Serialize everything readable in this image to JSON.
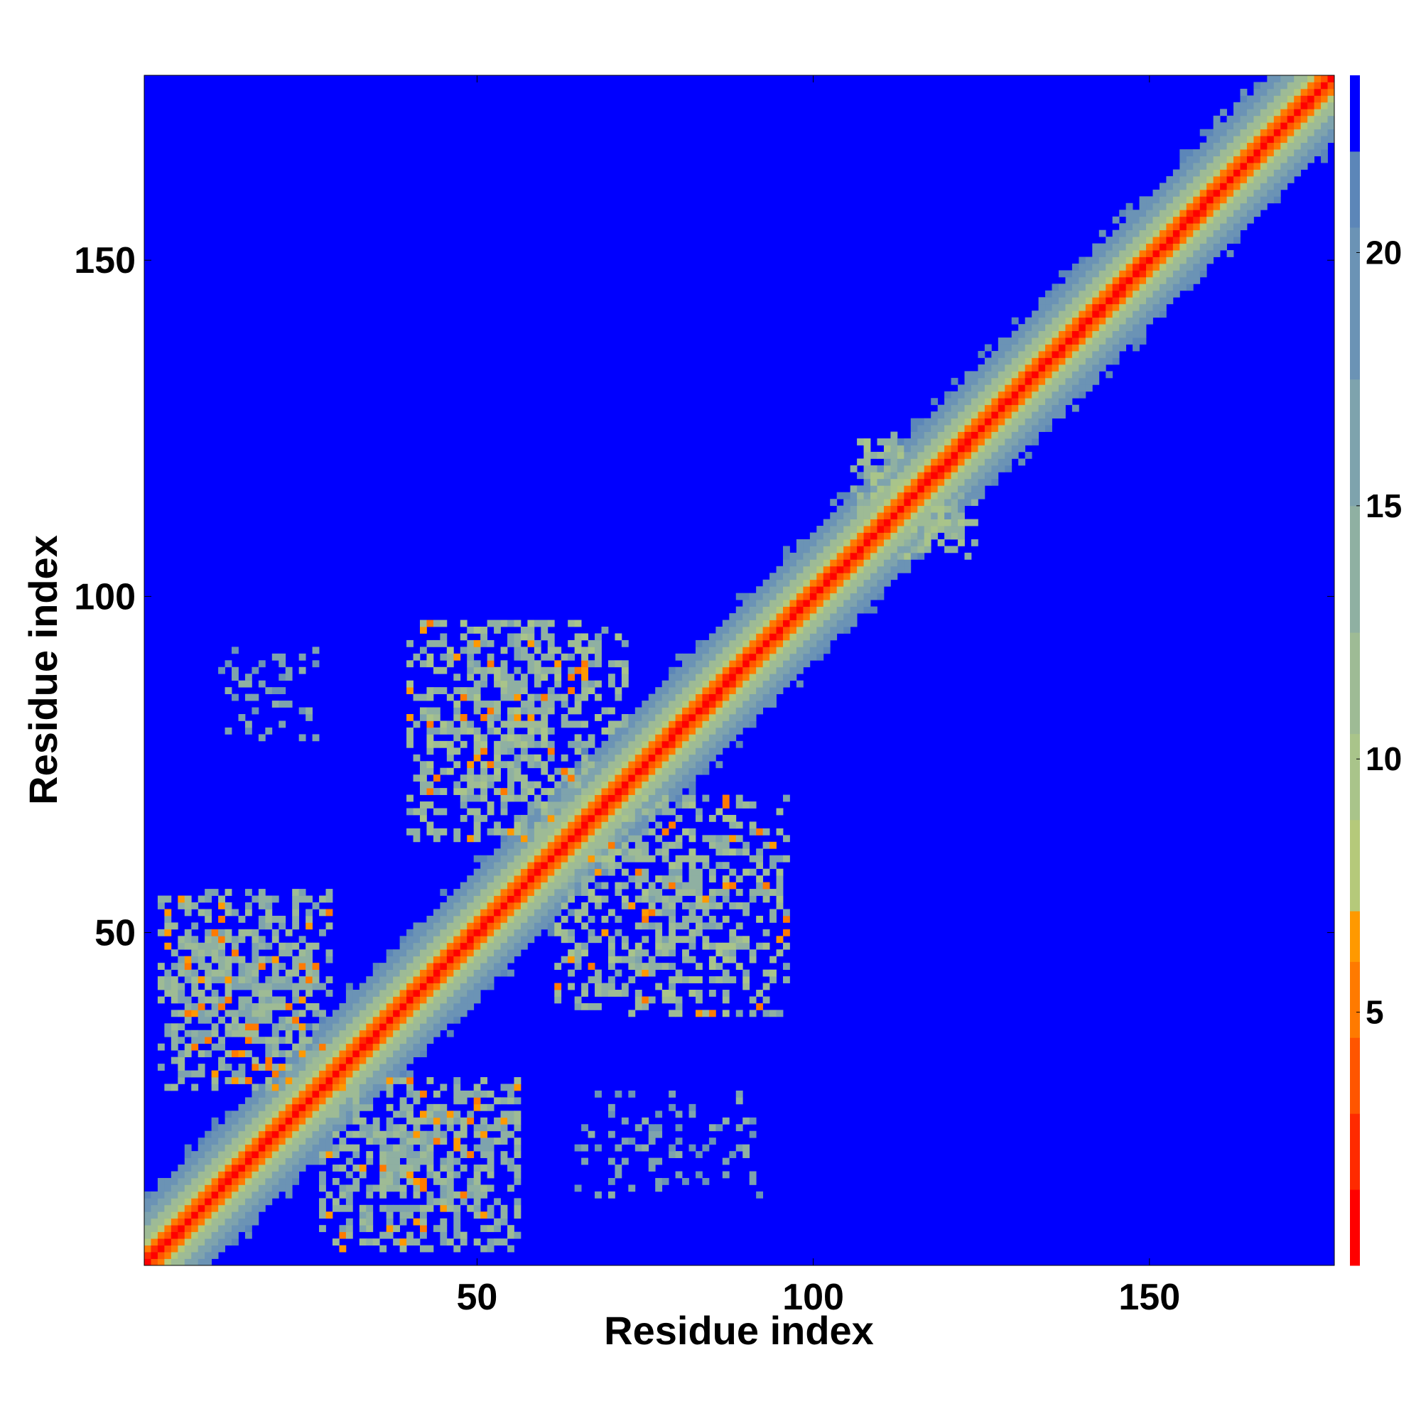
{
  "chart_data": {
    "type": "heatmap",
    "title": "",
    "xlabel": "Residue index",
    "ylabel": "Residue index",
    "xlim": [
      1,
      177
    ],
    "ylim": [
      1,
      177
    ],
    "x_ticks": [
      50,
      100,
      150
    ],
    "y_ticks": [
      50,
      100,
      150
    ],
    "x_tick_labels": [
      "50",
      "100",
      "150"
    ],
    "y_tick_labels": [
      "50",
      "100",
      "150"
    ],
    "colorbar": {
      "range": [
        0,
        22
      ],
      "ticks": [
        5,
        10,
        15,
        20
      ],
      "tick_labels": [
        "5",
        "10",
        "15",
        "20"
      ],
      "levels": [
        {
          "from": 0,
          "to": 1.5,
          "color": "#ff0000"
        },
        {
          "from": 1.5,
          "to": 3.0,
          "color": "#ff2a00"
        },
        {
          "from": 3.0,
          "to": 4.5,
          "color": "#ff5500"
        },
        {
          "from": 4.5,
          "to": 6.0,
          "color": "#ff7a00"
        },
        {
          "from": 6.0,
          "to": 7.0,
          "color": "#ff9900"
        },
        {
          "from": 7.0,
          "to": 8.8,
          "color": "#b5c97a"
        },
        {
          "from": 8.8,
          "to": 10.5,
          "color": "#a9c48a"
        },
        {
          "from": 10.5,
          "to": 12.5,
          "color": "#9ebb95"
        },
        {
          "from": 12.5,
          "to": 15.0,
          "color": "#8fb0a2"
        },
        {
          "from": 15.0,
          "to": 17.5,
          "color": "#7ea3ad"
        },
        {
          "from": 17.5,
          "to": 20.5,
          "color": "#6b93b5"
        },
        {
          "from": 20.5,
          "to": 22.0,
          "color": "#5c86b8"
        },
        {
          "from": 22.0,
          "to": 999,
          "color": "#0000ff"
        }
      ]
    },
    "diagonal": {
      "value": 0,
      "bands": [
        [
          1,
          3.8
        ],
        [
          2,
          6.0
        ],
        [
          3,
          8.5
        ],
        [
          5,
          12.5
        ],
        [
          7,
          16.5
        ],
        [
          9,
          20.0
        ]
      ]
    },
    "contact_regions": [
      {
        "x": [
          3,
          28
        ],
        "y": [
          27,
          56
        ],
        "level": 13.5,
        "density": 0.72,
        "close_frac": 0.1
      },
      {
        "x": [
          27,
          56
        ],
        "y": [
          3,
          28
        ],
        "level": 13.5,
        "density": 0.72,
        "close_frac": 0.1
      },
      {
        "x": [
          40,
          72
        ],
        "y": [
          64,
          96
        ],
        "level": 12.8,
        "density": 0.62,
        "close_frac": 0.08
      },
      {
        "x": [
          62,
          96
        ],
        "y": [
          38,
          70
        ],
        "level": 12.8,
        "density": 0.62,
        "close_frac": 0.08
      },
      {
        "x": [
          12,
          26
        ],
        "y": [
          79,
          93
        ],
        "level": 16.5,
        "density": 0.28,
        "close_frac": 0
      },
      {
        "x": [
          65,
          92
        ],
        "y": [
          11,
          26
        ],
        "level": 16.5,
        "density": 0.22,
        "close_frac": 0
      },
      {
        "x": [
          106,
          115
        ],
        "y": [
          113,
          124
        ],
        "level": 12.0,
        "density": 0.7,
        "close_frac": 0
      },
      {
        "x": [
          113,
          124
        ],
        "y": [
          106,
          115
        ],
        "level": 12.0,
        "density": 0.7,
        "close_frac": 0
      }
    ],
    "background_value": 23,
    "grid": false,
    "legend": "colorbar-right"
  }
}
